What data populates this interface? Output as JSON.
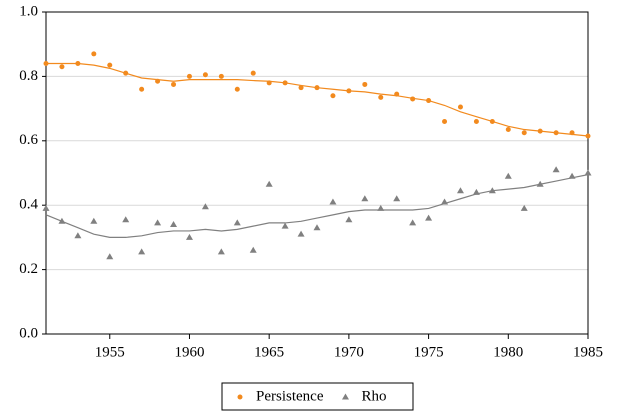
{
  "chart_data": {
    "type": "scatter",
    "x": [
      1951,
      1952,
      1953,
      1954,
      1955,
      1956,
      1957,
      1958,
      1959,
      1960,
      1961,
      1962,
      1963,
      1964,
      1965,
      1966,
      1967,
      1968,
      1969,
      1970,
      1971,
      1972,
      1973,
      1974,
      1975,
      1976,
      1977,
      1978,
      1979,
      1980,
      1981,
      1982,
      1983,
      1984,
      1985
    ],
    "series": [
      {
        "name": "Persistence",
        "color": "#f28a1e",
        "marker": "circle",
        "values": [
          0.84,
          0.83,
          0.84,
          0.87,
          0.835,
          0.81,
          0.76,
          0.785,
          0.775,
          0.8,
          0.805,
          0.8,
          0.76,
          0.81,
          0.78,
          0.78,
          0.765,
          0.765,
          0.74,
          0.755,
          0.775,
          0.735,
          0.745,
          0.73,
          0.725,
          0.66,
          0.705,
          0.66,
          0.66,
          0.635,
          0.625,
          0.63,
          0.625,
          0.625,
          0.615
        ],
        "smooth": [
          0.84,
          0.84,
          0.84,
          0.835,
          0.825,
          0.81,
          0.795,
          0.79,
          0.785,
          0.79,
          0.79,
          0.79,
          0.79,
          0.787,
          0.785,
          0.78,
          0.772,
          0.765,
          0.76,
          0.755,
          0.752,
          0.745,
          0.74,
          0.732,
          0.725,
          0.71,
          0.69,
          0.675,
          0.66,
          0.645,
          0.635,
          0.63,
          0.625,
          0.62,
          0.615
        ]
      },
      {
        "name": "Rho",
        "color": "#808080",
        "marker": "triangle",
        "values": [
          0.39,
          0.35,
          0.305,
          0.35,
          0.24,
          0.355,
          0.255,
          0.345,
          0.34,
          0.3,
          0.395,
          0.255,
          0.345,
          0.26,
          0.465,
          0.335,
          0.31,
          0.33,
          0.41,
          0.355,
          0.42,
          0.39,
          0.42,
          0.345,
          0.36,
          0.41,
          0.445,
          0.44,
          0.445,
          0.49,
          0.39,
          0.465,
          0.51,
          0.49,
          0.5
        ],
        "smooth": [
          0.37,
          0.35,
          0.33,
          0.31,
          0.3,
          0.3,
          0.305,
          0.315,
          0.32,
          0.32,
          0.325,
          0.32,
          0.325,
          0.335,
          0.345,
          0.345,
          0.35,
          0.36,
          0.37,
          0.38,
          0.385,
          0.385,
          0.385,
          0.385,
          0.39,
          0.405,
          0.42,
          0.435,
          0.445,
          0.45,
          0.455,
          0.465,
          0.475,
          0.485,
          0.495
        ]
      }
    ],
    "xlim": [
      1951,
      1985
    ],
    "xticks": [
      1955,
      1960,
      1965,
      1970,
      1975,
      1980,
      1985
    ],
    "ylim": [
      0,
      1
    ],
    "yticks": [
      {
        "value": 0,
        "label": "0.0"
      },
      0.2,
      0.4,
      0.6,
      0.8,
      {
        "value": 1,
        "label": "1.0"
      }
    ],
    "grid": true,
    "legend": "bottom"
  }
}
